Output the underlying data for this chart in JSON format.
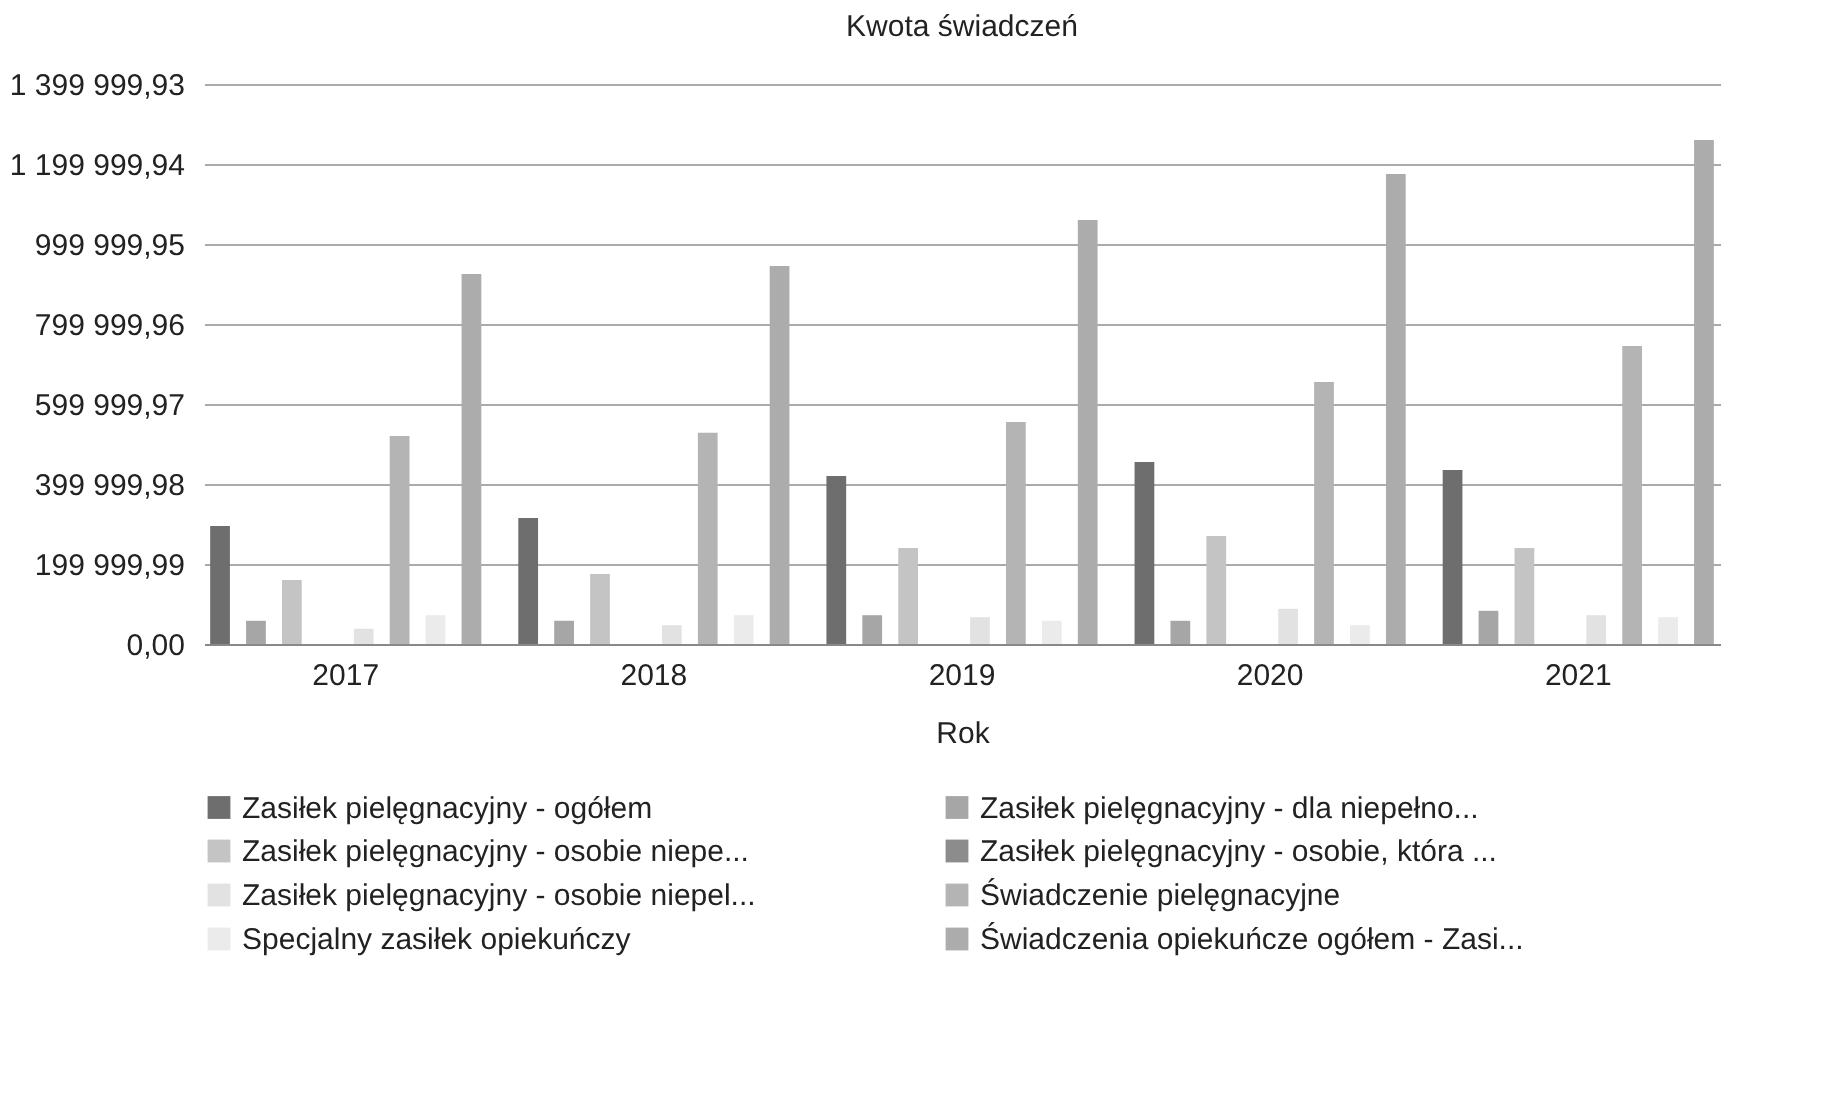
{
  "chart_data": {
    "type": "bar",
    "title": "Kwota świadczeń",
    "xlabel": "Rok",
    "categories": [
      "2017",
      "2018",
      "2019",
      "2020",
      "2021"
    ],
    "series": [
      {
        "name": "Zasiłek pielęgnacyjny - ogółem",
        "color": "#6e6e6e",
        "values": [
          295000,
          315000,
          420000,
          455000,
          435000
        ]
      },
      {
        "name": "Zasiłek pielęgnacyjny - dla niepełno...",
        "color": "#a6a6a6",
        "values": [
          58000,
          58000,
          72000,
          58000,
          83000
        ]
      },
      {
        "name": "Zasiłek pielęgnacyjny - osobie niepe...",
        "color": "#c4c4c4",
        "values": [
          160000,
          175000,
          240000,
          270000,
          240000
        ]
      },
      {
        "name": "Zasiłek pielęgnacyjny - osobie, która ...",
        "color": "#8c8c8c",
        "values": [
          null,
          null,
          null,
          null,
          null
        ]
      },
      {
        "name": "Zasiłek pielęgnacyjny -    osobie niepel...",
        "color": "#e2e2e2",
        "values": [
          38000,
          47000,
          67000,
          88000,
          72000
        ]
      },
      {
        "name": "Świadczenie pielęgnacyjne",
        "color": "#b4b4b4",
        "values": [
          520000,
          528000,
          555000,
          655000,
          745000
        ]
      },
      {
        "name": "Specjalny zasiłek opiekuńczy",
        "color": "#ebebeb",
        "values": [
          72000,
          72000,
          58000,
          47000,
          67000
        ]
      },
      {
        "name": "Świadczenia opiekuńcze ogółem - Zasi...",
        "color": "#acacac",
        "values": [
          925000,
          945000,
          1060000,
          1175000,
          1260000
        ]
      }
    ],
    "ylim": [
      0,
      1399999.93
    ],
    "yticks": [
      {
        "value": 0,
        "label": "0,00"
      },
      {
        "value": 199999.99,
        "label": "199 999,99"
      },
      {
        "value": 399999.98,
        "label": "399 999,98"
      },
      {
        "value": 599999.97,
        "label": "599 999,97"
      },
      {
        "value": 799999.96,
        "label": "799 999,96"
      },
      {
        "value": 999999.95,
        "label": "999 999,95"
      },
      {
        "value": 1199999.94,
        "label": "1 199 999,94"
      },
      {
        "value": 1399999.93,
        "label": "1 399 999,93"
      }
    ],
    "grid": "y",
    "legend": "bottom"
  }
}
